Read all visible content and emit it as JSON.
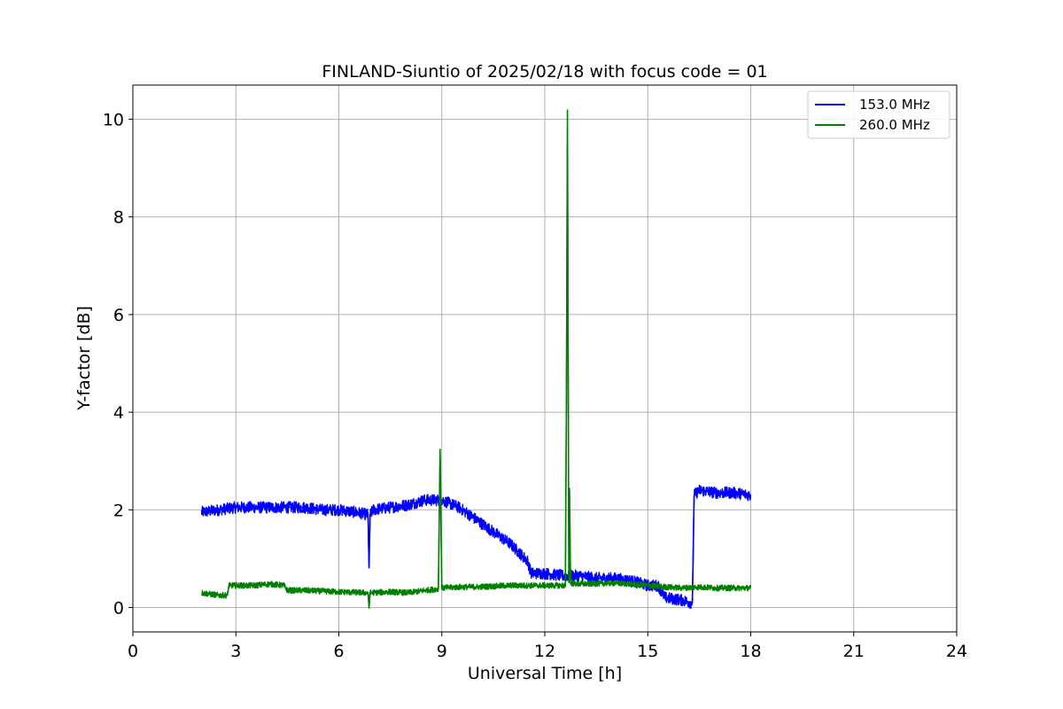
{
  "chart_data": {
    "type": "line",
    "title": "FINLAND-Siuntio of 2025/02/18 with focus code = 01",
    "xlabel": "Universal Time [h]",
    "ylabel": "Y-factor [dB]",
    "xlim": [
      0,
      24
    ],
    "ylim": [
      -0.5,
      10.7
    ],
    "xticks": [
      0,
      3,
      6,
      9,
      12,
      15,
      18,
      21,
      24
    ],
    "yticks": [
      0,
      2,
      4,
      6,
      8,
      10
    ],
    "grid": true,
    "legend_position": "top-right",
    "series": [
      {
        "name": "153.0 MHz",
        "color": "#0000ff",
        "noise": 0.12,
        "x": [
          2.0,
          2.5,
          3.0,
          3.5,
          4.0,
          4.5,
          5.0,
          5.5,
          6.0,
          6.5,
          6.85,
          6.88,
          6.91,
          7.0,
          7.5,
          8.0,
          8.5,
          9.0,
          9.5,
          10.0,
          10.5,
          11.0,
          11.5,
          11.6,
          12.0,
          12.5,
          13.0,
          13.5,
          14.0,
          14.5,
          15.0,
          15.3,
          15.5,
          16.0,
          16.25,
          16.3,
          16.35,
          16.5,
          17.0,
          17.5,
          18.0
        ],
        "y": [
          1.95,
          2.0,
          2.05,
          2.05,
          2.05,
          2.05,
          2.05,
          2.0,
          2.0,
          1.95,
          1.9,
          0.8,
          1.9,
          2.0,
          2.05,
          2.1,
          2.2,
          2.2,
          2.05,
          1.8,
          1.55,
          1.3,
          0.95,
          0.7,
          0.7,
          0.65,
          0.65,
          0.6,
          0.6,
          0.55,
          0.45,
          0.45,
          0.2,
          0.15,
          0.1,
          0.1,
          2.3,
          2.4,
          2.35,
          2.35,
          2.3
        ]
      },
      {
        "name": "260.0 MHz",
        "color": "#008000",
        "noise": 0.06,
        "x": [
          2.0,
          2.5,
          2.75,
          2.8,
          3.5,
          4.0,
          4.4,
          4.5,
          5.0,
          6.0,
          6.85,
          6.88,
          6.91,
          7.5,
          8.0,
          8.5,
          8.9,
          8.95,
          9.0,
          9.5,
          10.0,
          11.0,
          12.0,
          12.6,
          12.63,
          12.66,
          12.7,
          12.72,
          12.75,
          13.0,
          14.0,
          14.5,
          15.0,
          15.5,
          16.0,
          16.5,
          17.0,
          17.5,
          18.0
        ],
        "y": [
          0.3,
          0.25,
          0.25,
          0.45,
          0.45,
          0.48,
          0.45,
          0.35,
          0.35,
          0.32,
          0.3,
          0.0,
          0.3,
          0.32,
          0.3,
          0.35,
          0.38,
          3.25,
          0.4,
          0.42,
          0.42,
          0.45,
          0.45,
          0.45,
          4.2,
          10.2,
          0.5,
          2.45,
          0.5,
          0.48,
          0.5,
          0.48,
          0.45,
          0.42,
          0.4,
          0.42,
          0.4,
          0.4,
          0.4
        ]
      }
    ]
  }
}
